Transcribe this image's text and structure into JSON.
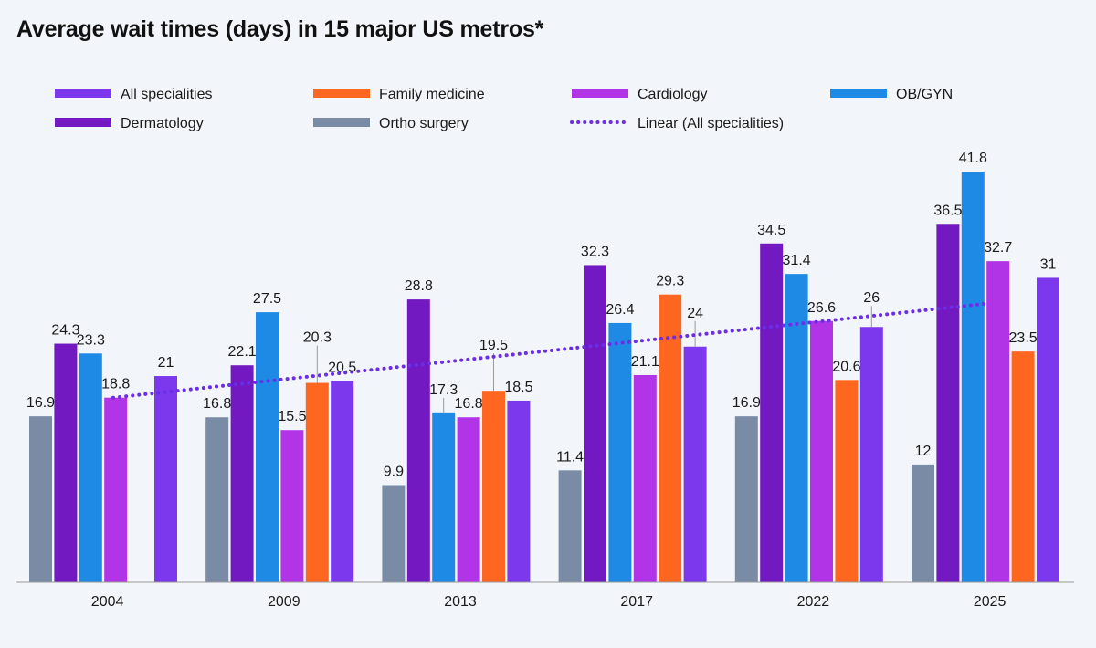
{
  "chart_data": {
    "type": "bar",
    "title": "Average wait times (days) in 15 major US metros*",
    "categories": [
      "2004",
      "2009",
      "2013",
      "2017",
      "2022",
      "2025"
    ],
    "ylim": [
      0,
      45
    ],
    "grid": false,
    "legend_position": "top",
    "series": [
      {
        "name": "Ortho surgery",
        "color": "#7a8ca5",
        "values": [
          16.9,
          16.8,
          9.9,
          11.4,
          16.9,
          12
        ]
      },
      {
        "name": "Dermatology",
        "color": "#7219c2",
        "values": [
          24.3,
          22.1,
          28.8,
          32.3,
          34.5,
          36.5
        ]
      },
      {
        "name": "OB/GYN",
        "color": "#1f8ae6",
        "values": [
          23.3,
          27.5,
          17.3,
          26.4,
          31.4,
          41.8
        ]
      },
      {
        "name": "Cardiology",
        "color": "#b134e6",
        "values": [
          18.8,
          15.5,
          16.8,
          21.1,
          26.6,
          32.7
        ]
      },
      {
        "name": "Family medicine",
        "color": "#ff6620",
        "values": [
          null,
          20.3,
          19.5,
          29.3,
          20.6,
          23.5
        ]
      },
      {
        "name": "All specialities",
        "color": "#7b38ec",
        "values": [
          21,
          20.5,
          18.5,
          24,
          26,
          31
        ]
      }
    ],
    "trendline": {
      "name": "Linear (All specialities)",
      "color": "#6a2ee6",
      "start": 18.8,
      "end": 28.4
    }
  },
  "legend": [
    {
      "name": "All specialities",
      "color": "#7b38ec",
      "kind": "bar"
    },
    {
      "name": "Family medicine",
      "color": "#ff6620",
      "kind": "bar"
    },
    {
      "name": "Cardiology",
      "color": "#b134e6",
      "kind": "bar"
    },
    {
      "name": "OB/GYN",
      "color": "#1f8ae6",
      "kind": "bar"
    },
    {
      "name": "Dermatology",
      "color": "#7219c2",
      "kind": "bar"
    },
    {
      "name": "Ortho surgery",
      "color": "#7a8ca5",
      "kind": "bar"
    },
    {
      "name": "Linear (All specialities)",
      "color": "#6a2ee6",
      "kind": "dotted-line"
    }
  ]
}
